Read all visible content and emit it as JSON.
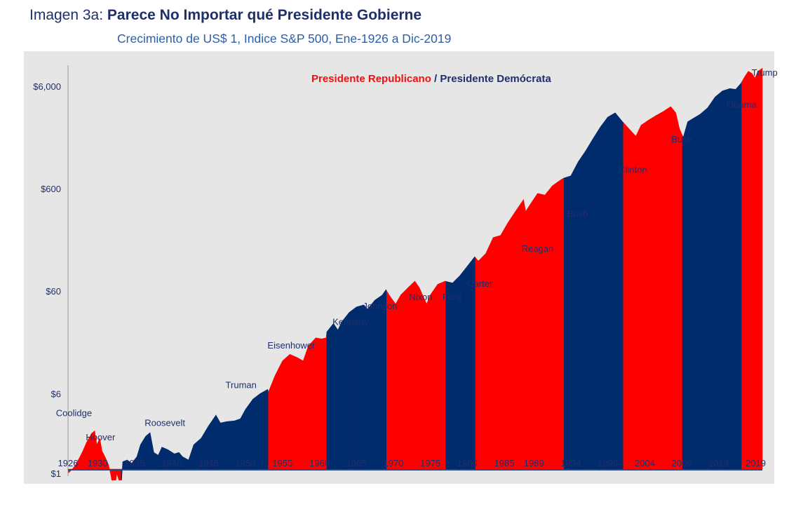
{
  "header": {
    "prefix": "Imagen 3a:",
    "title": "Parece No Importar qué Presidente Gobierne",
    "subtitle": "Crecimiento de US$ 1, Indice S&P 500, Ene-1926 a Dic-2019"
  },
  "legend": {
    "republican_label": "Presidente Republicano",
    "separator": " / ",
    "democrat_label": "Presidente Demócrata"
  },
  "colors": {
    "republican": "#ff0000",
    "democrat": "#002b6c",
    "panel": "#e6e6e6",
    "axis": "#1f2f6b"
  },
  "chart_data": {
    "type": "area",
    "title": "Parece No Importar qué Presidente Gobierne",
    "subtitle": "Crecimiento de US$ 1, Indice S&P 500, Ene-1926 a Dic-2019",
    "yscale": "log",
    "ylim": [
      1,
      9000
    ],
    "xlim": [
      1926,
      2019.9
    ],
    "y_ticks": [
      {
        "value": 1,
        "label": "$1"
      },
      {
        "value": 6,
        "label": "$6"
      },
      {
        "value": 60,
        "label": "$60"
      },
      {
        "value": 600,
        "label": "$600"
      },
      {
        "value": 6000,
        "label": "$6,000"
      }
    ],
    "x_ticks": [
      1926,
      1930,
      1935,
      1940,
      1945,
      1950,
      1955,
      1960,
      1965,
      1970,
      1975,
      1980,
      1985,
      1989,
      1994,
      1999,
      2004,
      2009,
      2014,
      2019
    ],
    "baseline": 1.1,
    "series": [
      {
        "values": [
          [
            1926.0,
            1.0
          ],
          [
            1926.5,
            1.08
          ],
          [
            1927.0,
            1.2
          ],
          [
            1927.5,
            1.4
          ],
          [
            1928.0,
            1.65
          ],
          [
            1928.5,
            2.0
          ],
          [
            1929.2,
            2.45
          ],
          [
            1929.6,
            2.6
          ],
          [
            1929.9,
            1.9
          ],
          [
            1930.3,
            2.2
          ],
          [
            1930.6,
            1.65
          ],
          [
            1931.0,
            1.45
          ],
          [
            1931.5,
            1.2
          ],
          [
            1931.8,
            0.95
          ],
          [
            1932.0,
            0.78
          ],
          [
            1932.3,
            0.7
          ],
          [
            1932.6,
            1.0
          ],
          [
            1932.9,
            0.85
          ],
          [
            1933.2,
            0.75
          ],
          [
            1933.4,
            1.3
          ],
          [
            1934.0,
            1.35
          ],
          [
            1934.6,
            1.25
          ],
          [
            1935.3,
            1.45
          ],
          [
            1935.8,
            1.9
          ],
          [
            1936.5,
            2.3
          ],
          [
            1937.1,
            2.5
          ],
          [
            1937.6,
            1.6
          ],
          [
            1938.2,
            1.5
          ],
          [
            1938.7,
            1.8
          ],
          [
            1939.5,
            1.7
          ],
          [
            1940.4,
            1.55
          ],
          [
            1941.0,
            1.6
          ],
          [
            1941.5,
            1.45
          ],
          [
            1942.3,
            1.35
          ],
          [
            1943.0,
            1.9
          ],
          [
            1944.0,
            2.2
          ],
          [
            1945.0,
            2.9
          ],
          [
            1946.0,
            3.7
          ],
          [
            1946.6,
            3.1
          ],
          [
            1947.5,
            3.2
          ],
          [
            1948.5,
            3.25
          ],
          [
            1949.3,
            3.4
          ],
          [
            1950.0,
            4.2
          ],
          [
            1951.0,
            5.3
          ],
          [
            1952.0,
            6.0
          ],
          [
            1953.0,
            6.6
          ],
          [
            1953.1,
            6.2
          ],
          [
            1954.0,
            9.0
          ],
          [
            1955.0,
            12.5
          ],
          [
            1956.0,
            14.5
          ],
          [
            1957.0,
            13.5
          ],
          [
            1957.8,
            12.5
          ],
          [
            1958.5,
            17.5
          ],
          [
            1959.5,
            21.0
          ],
          [
            1960.3,
            20.5
          ],
          [
            1960.9,
            21.0
          ],
          [
            1961.0,
            24.0
          ],
          [
            1961.9,
            29.0
          ],
          [
            1962.5,
            25.0
          ],
          [
            1963.0,
            30.0
          ],
          [
            1964.0,
            37.0
          ],
          [
            1965.0,
            42.0
          ],
          [
            1966.0,
            44.0
          ],
          [
            1966.5,
            40.0
          ],
          [
            1967.5,
            49.0
          ],
          [
            1968.5,
            55.0
          ],
          [
            1969.0,
            62.0
          ],
          [
            1969.5,
            54.0
          ],
          [
            1970.3,
            45.0
          ],
          [
            1971.0,
            55.0
          ],
          [
            1972.0,
            65.0
          ],
          [
            1972.9,
            75.0
          ],
          [
            1973.5,
            65.0
          ],
          [
            1974.5,
            45.0
          ],
          [
            1975.0,
            55.0
          ],
          [
            1976.0,
            70.0
          ],
          [
            1977.0,
            75.0
          ],
          [
            1978.0,
            72.0
          ],
          [
            1979.0,
            85.0
          ],
          [
            1980.0,
            105.0
          ],
          [
            1981.0,
            130.0
          ],
          [
            1981.5,
            118.0
          ],
          [
            1982.5,
            140.0
          ],
          [
            1983.5,
            200.0
          ],
          [
            1984.5,
            210.0
          ],
          [
            1985.5,
            280.0
          ],
          [
            1986.5,
            360.0
          ],
          [
            1987.6,
            470.0
          ],
          [
            1987.9,
            360.0
          ],
          [
            1988.5,
            420.0
          ],
          [
            1989.5,
            540.0
          ],
          [
            1990.5,
            520.0
          ],
          [
            1991.5,
            640.0
          ],
          [
            1992.5,
            720.0
          ],
          [
            1993.0,
            760.0
          ],
          [
            1994.0,
            800.0
          ],
          [
            1995.0,
            1100.0
          ],
          [
            1996.0,
            1400.0
          ],
          [
            1997.0,
            1850.0
          ],
          [
            1998.0,
            2400.0
          ],
          [
            1999.0,
            3000.0
          ],
          [
            2000.0,
            3300.0
          ],
          [
            2001.0,
            2700.0
          ],
          [
            2002.0,
            2250.0
          ],
          [
            2002.8,
            1950.0
          ],
          [
            2003.5,
            2500.0
          ],
          [
            2004.5,
            2800.0
          ],
          [
            2005.5,
            3100.0
          ],
          [
            2006.5,
            3400.0
          ],
          [
            2007.5,
            3800.0
          ],
          [
            2008.2,
            3300.0
          ],
          [
            2008.7,
            2300.0
          ],
          [
            2009.2,
            1900.0
          ],
          [
            2009.8,
            2700.0
          ],
          [
            2010.5,
            2900.0
          ],
          [
            2011.5,
            3200.0
          ],
          [
            2012.5,
            3700.0
          ],
          [
            2013.5,
            4700.0
          ],
          [
            2014.5,
            5400.0
          ],
          [
            2015.5,
            5700.0
          ],
          [
            2016.3,
            5600.0
          ],
          [
            2017.0,
            6400.0
          ],
          [
            2017.5,
            7400.0
          ],
          [
            2018.0,
            8400.0
          ],
          [
            2018.5,
            8000.0
          ],
          [
            2018.9,
            7200.0
          ],
          [
            2019.3,
            8400.0
          ],
          [
            2019.9,
            9000.0
          ]
        ]
      }
    ],
    "terms": [
      {
        "start": 1926.0,
        "end": 1929.2,
        "party": "republican"
      },
      {
        "start": 1929.2,
        "end": 1933.2,
        "party": "republican"
      },
      {
        "start": 1933.2,
        "end": 1945.3,
        "party": "democrat"
      },
      {
        "start": 1945.3,
        "end": 1953.1,
        "party": "democrat"
      },
      {
        "start": 1953.1,
        "end": 1961.0,
        "party": "republican"
      },
      {
        "start": 1961.0,
        "end": 1963.9,
        "party": "democrat"
      },
      {
        "start": 1963.9,
        "end": 1969.1,
        "party": "democrat"
      },
      {
        "start": 1969.1,
        "end": 1974.6,
        "party": "republican"
      },
      {
        "start": 1974.6,
        "end": 1977.1,
        "party": "republican"
      },
      {
        "start": 1977.1,
        "end": 1981.1,
        "party": "democrat"
      },
      {
        "start": 1981.1,
        "end": 1989.1,
        "party": "republican"
      },
      {
        "start": 1989.1,
        "end": 1993.1,
        "party": "republican"
      },
      {
        "start": 1993.1,
        "end": 2001.1,
        "party": "democrat"
      },
      {
        "start": 2001.1,
        "end": 2009.1,
        "party": "republican"
      },
      {
        "start": 2009.1,
        "end": 2017.1,
        "party": "democrat"
      },
      {
        "start": 2017.1,
        "end": 2019.9,
        "party": "republican"
      }
    ],
    "annotations": [
      {
        "text": "Coolidge",
        "x": 1926.8,
        "y": 3.6
      },
      {
        "text": "Hoover",
        "x": 1930.4,
        "y": 2.1
      },
      {
        "text": "Roosevelt",
        "x": 1939.1,
        "y": 2.9
      },
      {
        "text": "Truman",
        "x": 1949.4,
        "y": 6.8
      },
      {
        "text": "Eisenhower",
        "x": 1956.2,
        "y": 16.5
      },
      {
        "text": "Kennedy",
        "x": 1964.2,
        "y": 28.0
      },
      {
        "text": "Johnson",
        "x": 1968.2,
        "y": 40.0
      },
      {
        "text": "Nixon",
        "x": 1973.7,
        "y": 49.0
      },
      {
        "text": "Ford",
        "x": 1977.9,
        "y": 49.0
      },
      {
        "text": "Carter",
        "x": 1981.7,
        "y": 66.0
      },
      {
        "text": "Reagan",
        "x": 1989.5,
        "y": 145.0
      },
      {
        "text": "Bush",
        "x": 1994.9,
        "y": 320.0
      },
      {
        "text": "Clinton",
        "x": 2002.4,
        "y": 860.0
      },
      {
        "text": "Bush",
        "x": 2009.0,
        "y": 1700.0
      },
      {
        "text": "Obama",
        "x": 2017.1,
        "y": 3700.0
      },
      {
        "text": "Trump",
        "x": 2020.2,
        "y": 7600.0
      }
    ]
  }
}
